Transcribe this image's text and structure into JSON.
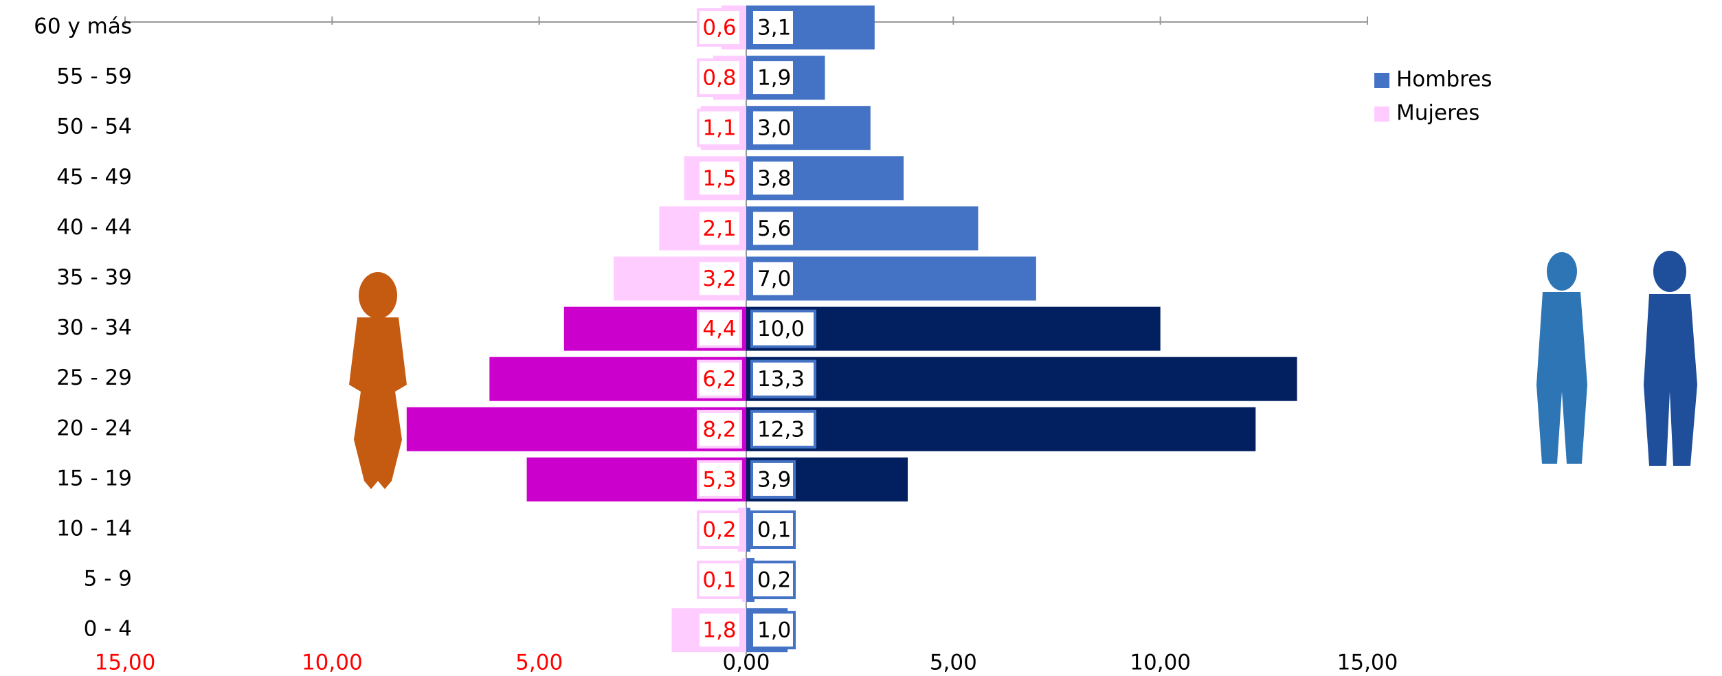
{
  "chart_data": {
    "type": "pyramid",
    "categories": [
      "60 y más",
      "55 - 59",
      "50 - 54",
      "45 - 49",
      "40 - 44",
      "35 - 39",
      "30 - 34",
      "25 - 29",
      "20 - 24",
      "15 - 19",
      "10 - 14",
      "5 - 9",
      "0 - 4"
    ],
    "series": [
      {
        "name": "Hombres",
        "color": "#4472c4",
        "side": "right",
        "colors": [
          "#4472c4",
          "#4472c4",
          "#4472c4",
          "#4472c4",
          "#4472c4",
          "#4472c4",
          "#021f60",
          "#021f60",
          "#021f60",
          "#021f60",
          "#4472c4",
          "#4472c4",
          "#4472c4"
        ],
        "values": [
          3.1,
          1.9,
          3.0,
          3.8,
          5.6,
          7.0,
          10.0,
          13.3,
          12.3,
          3.9,
          0.1,
          0.2,
          1.0
        ],
        "value_labels": [
          "3,1",
          "1,9",
          "3,0",
          "3,8",
          "5,6",
          "7,0",
          "10,0",
          "13,3",
          "12,3",
          "3,9",
          "0,1",
          "0,2",
          "1,0"
        ]
      },
      {
        "name": "Mujeres",
        "color": "#ffccff",
        "side": "left",
        "colors": [
          "#ffccff",
          "#ffccff",
          "#ffccff",
          "#ffccff",
          "#ffccff",
          "#ffccff",
          "#cc00cc",
          "#cc00cc",
          "#cc00cc",
          "#cc00cc",
          "#ffccff",
          "#ffccff",
          "#ffccff"
        ],
        "values": [
          0.6,
          0.8,
          1.1,
          1.5,
          2.1,
          3.2,
          4.4,
          6.2,
          8.2,
          5.3,
          0.2,
          0.1,
          1.8
        ],
        "value_labels": [
          "0,6",
          "0,8",
          "1,1",
          "1,5",
          "2,1",
          "3,2",
          "4,4",
          "6,2",
          "8,2",
          "5,3",
          "0,2",
          "0,1",
          "1,8"
        ]
      }
    ],
    "xlim": [
      -15,
      15
    ],
    "xticks": [
      {
        "value": -15,
        "label": "15,00"
      },
      {
        "value": -10,
        "label": "10,00"
      },
      {
        "value": -5,
        "label": "5,00"
      },
      {
        "value": 0,
        "label": "0,00"
      },
      {
        "value": 5,
        "label": "5,00"
      },
      {
        "value": 10,
        "label": "10,00"
      },
      {
        "value": 15,
        "label": "15,00"
      }
    ],
    "legend": "right"
  }
}
